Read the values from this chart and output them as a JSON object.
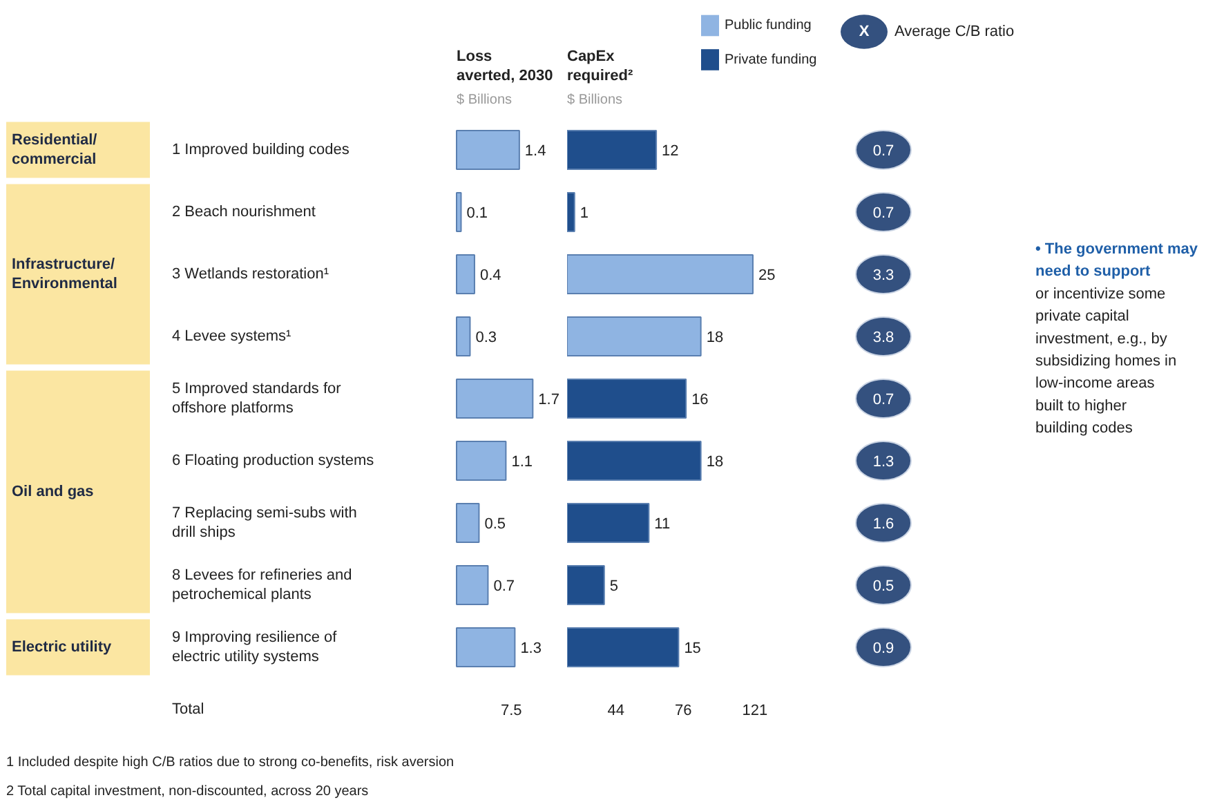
{
  "chart_data": [
    {
      "type": "other",
      "annotations": [
        "Residential/ commercial",
        "Infrastructure/ Environmental",
        "Oil and gas",
        "Electric utility"
      ]
    },
    {
      "type": "bar",
      "orientation": "horizontal",
      "title": "Loss averted, 2030",
      "subtitle": "$ Billions",
      "categories": [
        "1 Improved building codes",
        "2 Beach nourishment",
        "3 Wetlands restoration¹",
        "4 Levee systems¹",
        "5 Improved standards for offshore platforms",
        "6 Floating production systems",
        "7 Replacing semi-subs with drill ships",
        "8 Levees for refineries and petrochemical plants",
        "9 Improving resilience of electric utility systems"
      ],
      "values": [
        1.4,
        0.1,
        0.4,
        0.3,
        1.7,
        1.1,
        0.5,
        0.7,
        1.3
      ],
      "color": "#8fb4e2",
      "data_labels": true,
      "annotations": [
        "Total",
        "7.5"
      ]
    },
    {
      "type": "bar",
      "orientation": "horizontal",
      "title": "CapEx required²",
      "subtitle": "$ Billions",
      "categories": [
        null,
        null,
        null,
        null,
        null,
        null,
        null,
        null,
        null
      ],
      "series": [
        {
          "name": "Public funding",
          "color": "#8fb4e2",
          "values": [
            null,
            null,
            25,
            18,
            null,
            null,
            null,
            null,
            null
          ]
        },
        {
          "name": "Private funding",
          "color": "#1f4e8c",
          "values": [
            12,
            1,
            null,
            null,
            16,
            18,
            11,
            5,
            15
          ]
        }
      ],
      "data_labels": true,
      "legend": "top right",
      "annotations": [
        "44",
        "76",
        "121"
      ]
    },
    {
      "type": "other",
      "title": "Average C/B ratio",
      "values": [
        0.7,
        0.7,
        3.3,
        3.8,
        0.7,
        1.3,
        1.6,
        0.5,
        0.9
      ],
      "color": "#34517f",
      "data_labels": true,
      "annotations": [
        "X"
      ]
    },
    {
      "type": "other",
      "annotations": [
        "• The government may need to support",
        "or incentivize some private capital investment, e.g., by subsidizing homes in low-income areas built to higher building codes"
      ]
    },
    {
      "type": "other",
      "annotations": [
        "1 Included despite high C/B ratios due to strong co-benefits, risk aversion",
        "2 Total capital investment, non-discounted, across 20 years"
      ]
    }
  ]
}
